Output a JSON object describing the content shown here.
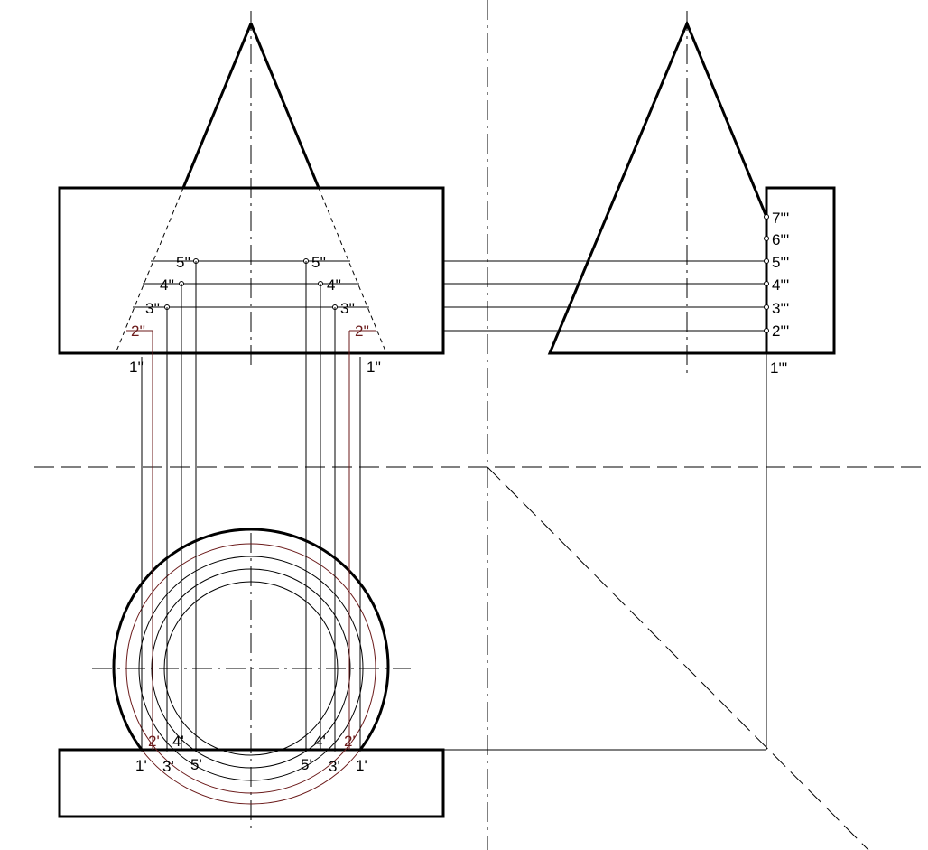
{
  "labels": {
    "front": {
      "p1_left": "1''",
      "p1_right": "1''",
      "p2_left": "2''",
      "p2_right": "2''",
      "p3_left": "3''",
      "p3_right": "3''",
      "p4_left": "4''",
      "p4_right": "4''",
      "p5_left": "5''",
      "p5_right": "5''"
    },
    "side": {
      "p1": "1'''",
      "p2": "2'''",
      "p3": "3'''",
      "p4": "4'''",
      "p5": "5'''",
      "p6": "6'''",
      "p7": "7'''"
    },
    "top": {
      "p1_left": "1'",
      "p1_right": "1'",
      "p2_left": "2'",
      "p2_right": "2'",
      "p3_left": "3'",
      "p3_right": "3'",
      "p4_left": "4'",
      "p4_right": "4'",
      "p5_left": "5'",
      "p5_right": "5'"
    }
  },
  "colors": {
    "line": "#000000",
    "highlight": "#6b1a1a",
    "background": "#ffffff"
  }
}
